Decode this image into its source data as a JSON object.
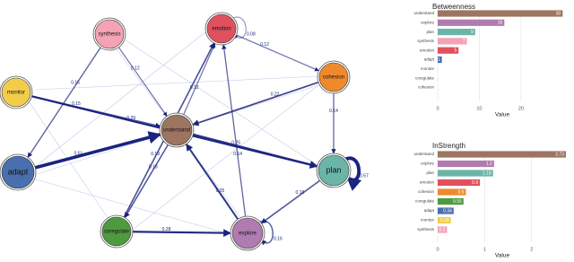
{
  "network": {
    "nodes": [
      {
        "label": "synthesis",
        "color": "#f4a3b4"
      },
      {
        "label": "emotion",
        "color": "#e0505e"
      },
      {
        "label": "monitor",
        "color": "#f2cd4a"
      },
      {
        "label": "cohesion",
        "color": "#ef8a2c"
      },
      {
        "label": "understand",
        "color": "#9c7561"
      },
      {
        "label": "adapt",
        "color": "#4a6fae"
      },
      {
        "label": "plan",
        "color": "#6bb5a8"
      },
      {
        "label": "coregulate",
        "color": "#4f9a3f"
      },
      {
        "label": "explore",
        "color": "#b07bb0"
      }
    ],
    "edges": [
      {
        "from": "monitor",
        "to": "plan",
        "weight": 0.29
      },
      {
        "from": "adapt",
        "to": "understand",
        "weight": 0.51
      },
      {
        "from": "synthesis",
        "to": "adapt",
        "weight": 0.15
      },
      {
        "from": "synthesis",
        "to": "understand",
        "weight": 0.12
      },
      {
        "from": "understand",
        "to": "emotion",
        "weight": 0.12
      },
      {
        "from": "cohesion",
        "to": "understand",
        "weight": 0.22
      },
      {
        "from": "emotion",
        "to": "cohesion",
        "weight": 0.12
      },
      {
        "from": "cohesion",
        "to": "plan",
        "weight": 0.14
      },
      {
        "from": "understand",
        "to": "plan",
        "weight": 0.25
      },
      {
        "from": "understand",
        "to": "coregulate",
        "weight": 0.18
      },
      {
        "from": "coregulate",
        "to": "explore",
        "weight": 0.28
      },
      {
        "from": "explore",
        "to": "understand",
        "weight": 0.25
      },
      {
        "from": "explore",
        "to": "emotion",
        "weight": 0.14
      },
      {
        "from": "plan",
        "to": "explore",
        "weight": 0.18
      },
      {
        "from": "coregulate",
        "to": "emotion",
        "weight": 0.19
      },
      {
        "from": "monitor",
        "to": "understand",
        "weight": 0.15
      },
      {
        "from": "plan",
        "to": "plan",
        "weight": 0.57
      },
      {
        "from": "explore",
        "to": "explore",
        "weight": 0.16
      },
      {
        "from": "emotion",
        "to": "emotion",
        "weight": 0.08
      }
    ]
  },
  "chart_data": [
    {
      "type": "bar",
      "title": "Betweenness",
      "x_label": "Value",
      "categories": [
        "understand",
        "explore",
        "plan",
        "synthesis",
        "emotion",
        "adapt",
        "monitor",
        "coregulate",
        "cohesion"
      ],
      "values": [
        30,
        16,
        9,
        7,
        5,
        1,
        0,
        0,
        0
      ],
      "colors": [
        "#9c7561",
        "#b07bb0",
        "#6bb5a8",
        "#f4a3b4",
        "#e0505e",
        "#4a6fae",
        "#f2cd4a",
        "#4f9a3f",
        "#ef8a2c"
      ],
      "xlim": [
        0,
        31
      ],
      "xticks": [
        0,
        10,
        20
      ],
      "grid": true
    },
    {
      "type": "bar",
      "title": "InStrength",
      "x_label": "Value",
      "categories": [
        "understand",
        "explore",
        "plan",
        "emotion",
        "cohesion",
        "coregulate",
        "adapt",
        "monitor",
        "synthesis"
      ],
      "values": [
        2.73,
        1.2,
        1.18,
        0.9,
        0.6,
        0.55,
        0.34,
        0.28,
        0.2
      ],
      "colors": [
        "#9c7561",
        "#b07bb0",
        "#6bb5a8",
        "#e0505e",
        "#ef8a2c",
        "#4f9a3f",
        "#4a6fae",
        "#f2cd4a",
        "#f4a3b4"
      ],
      "xlim": [
        0,
        2.75
      ],
      "xticks": [
        0,
        1,
        2
      ],
      "grid": true
    }
  ]
}
